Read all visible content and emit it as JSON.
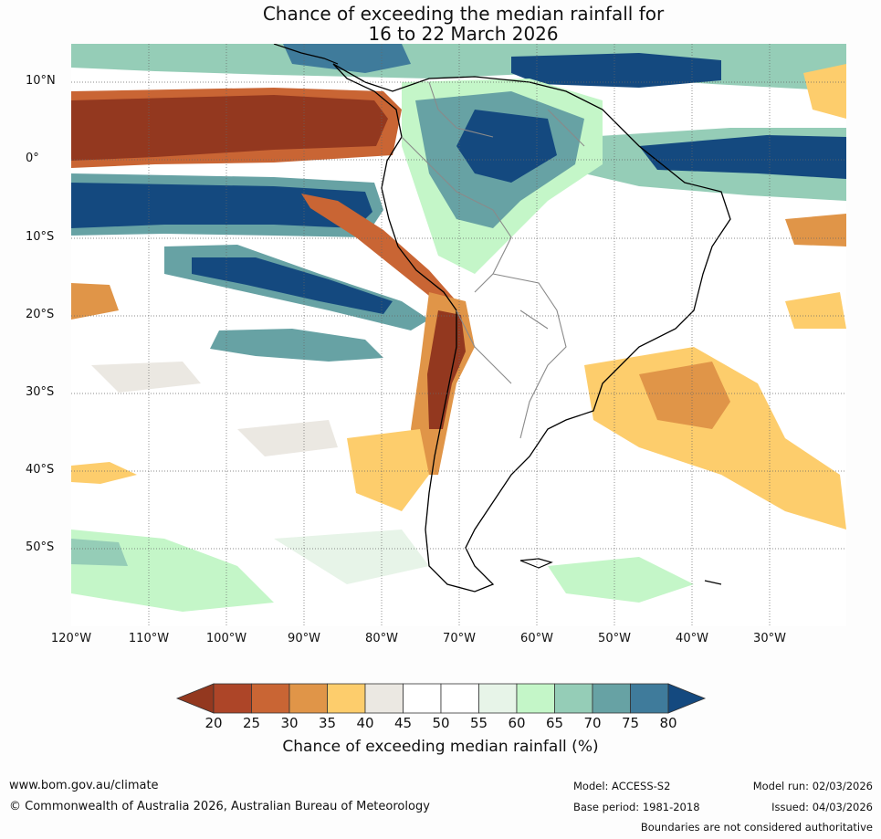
{
  "header": {
    "title_line1": "Chance of exceeding the median rainfall for",
    "title_line2": "16 to 22 March 2026"
  },
  "map": {
    "lat_labels": [
      "10°N",
      "0°",
      "10°S",
      "20°S",
      "30°S",
      "40°S",
      "50°S"
    ],
    "lon_labels": [
      "120°W",
      "110°W",
      "100°W",
      "90°W",
      "80°W",
      "70°W",
      "60°W",
      "50°W",
      "40°W",
      "30°W"
    ]
  },
  "colorbar": {
    "ticks": [
      "20",
      "25",
      "30",
      "35",
      "40",
      "45",
      "50",
      "55",
      "60",
      "65",
      "70",
      "75",
      "80"
    ],
    "label": "Chance of exceeding median rainfall (%)",
    "colors": {
      "under": "#93381f",
      "c20_25": "#ad4528",
      "c25_30": "#c96534",
      "c30_35": "#e09548",
      "c35_40": "#fdcd6c",
      "c40_45": "#ebe8e2",
      "c45_50": "#ffffff",
      "c50_55": "#ffffff",
      "c55_60": "#e7f4e8",
      "c60_65": "#c4f6c8",
      "c65_70": "#95cdb7",
      "c70_75": "#67a2a4",
      "c75_80": "#3f7b9b",
      "over": "#14497f"
    }
  },
  "footer": {
    "website": "www.bom.gov.au/climate",
    "copyright": "© Commonwealth of Australia 2026, Australian Bureau of Meteorology",
    "model": "Model: ACCESS-S2",
    "base_period": "Base period: 1981-2018",
    "model_run": "Model run: 02/03/2026",
    "issued": "Issued: 04/03/2026",
    "disclaimer": "Boundaries are not considered authoritative"
  }
}
